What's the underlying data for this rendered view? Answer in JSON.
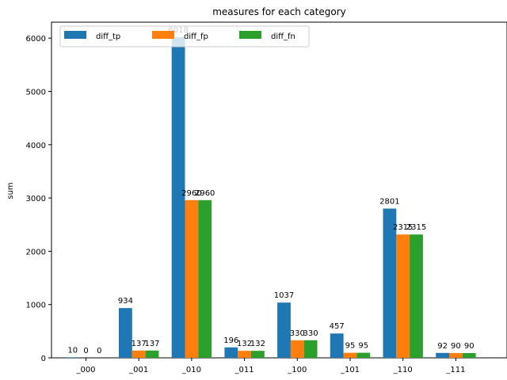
{
  "chart_data": {
    "type": "bar",
    "title": "measures for each category",
    "xlabel": "",
    "ylabel": "sum",
    "ylim": [
      0,
      6300
    ],
    "yticks": [
      0,
      1000,
      2000,
      3000,
      4000,
      5000,
      6000
    ],
    "categories": [
      "_000",
      "_001",
      "_010",
      "_011",
      "_100",
      "_101",
      "_110",
      "_111"
    ],
    "series": [
      {
        "name": "diff_tp",
        "color": "#1f77b4",
        "values": [
          10,
          934,
          6018,
          196,
          1037,
          457,
          2801,
          92
        ]
      },
      {
        "name": "diff_fp",
        "color": "#ff7f0e",
        "values": [
          0,
          137,
          2960,
          132,
          330,
          95,
          2315,
          90
        ]
      },
      {
        "name": "diff_fn",
        "color": "#2ca02c",
        "values": [
          0,
          137,
          2960,
          132,
          330,
          95,
          2315,
          90
        ]
      }
    ],
    "grid": false,
    "legend_position": "top-left",
    "legend_columns": 3
  }
}
